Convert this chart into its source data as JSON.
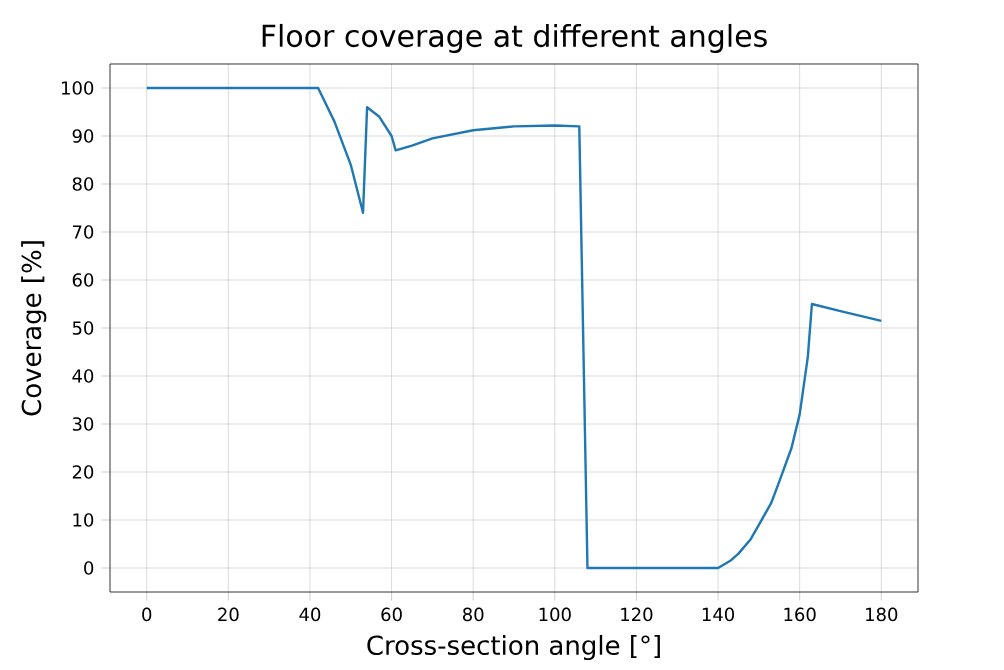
{
  "chart_data": {
    "type": "line",
    "title": "Floor coverage at different angles",
    "xlabel": "Cross-section angle [°]",
    "ylabel": "Coverage [%]",
    "series": [
      {
        "color": "#1f77b4",
        "x": [
          0,
          42,
          46,
          50,
          53,
          54,
          57,
          60,
          61,
          65,
          70,
          80,
          90,
          100,
          106,
          108,
          140,
          143,
          145,
          148,
          150,
          153,
          155,
          158,
          160,
          162,
          163,
          170,
          180
        ],
        "values": [
          100,
          100,
          93,
          84,
          74,
          96,
          94,
          90,
          87,
          88,
          89.5,
          91.2,
          92,
          92.2,
          92,
          0,
          0,
          1.5,
          3,
          6,
          9,
          13.5,
          18,
          25,
          32,
          44,
          55,
          53.5,
          51.5
        ]
      }
    ],
    "xlim": [
      -9,
      189
    ],
    "ylim": [
      -5,
      105
    ],
    "xticks": [
      0,
      20,
      40,
      60,
      80,
      100,
      120,
      140,
      160,
      180
    ],
    "yticks": [
      0,
      10,
      20,
      30,
      40,
      50,
      60,
      70,
      80,
      90,
      100
    ],
    "grid": true,
    "marker": "none",
    "line_style": "solid"
  }
}
